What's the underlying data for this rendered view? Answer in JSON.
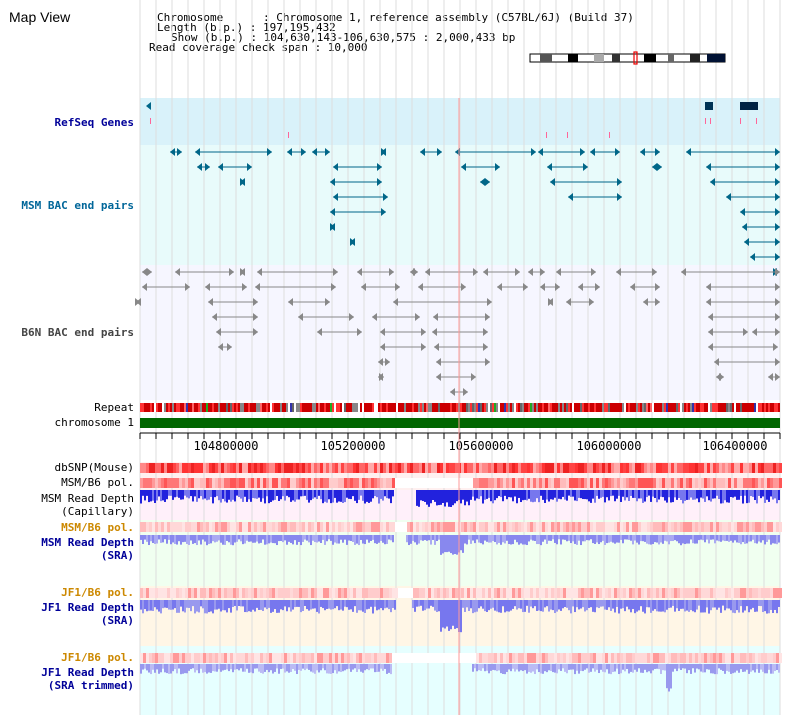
{
  "app": {
    "title": "Map View"
  },
  "header": {
    "chromosome_line": "Chromosome      : Chromosome 1, reference assembly (C57BL/6J) (Build 37)",
    "length_line": "Length (b.p.) : 197,195,432",
    "show_line": "Show (b.p.) : 104,630,143-106,630,575 : 2,000,433 bp",
    "span_line": "Read coverage check span : 10,000"
  },
  "tracks": {
    "refseq": "RefSeq Genes",
    "msm_bac": "MSM BAC end pairs",
    "b6n_bac": "B6N BAC end pairs",
    "repeat": "Repeat",
    "chromosome": "chromosome 1",
    "dbsnp": "dbSNP(Mouse)",
    "msm_pol_1": "MSM/B6 pol.",
    "msm_depth_cap_1": "MSM Read Depth",
    "msm_depth_cap_2": "(Capillary)",
    "msm_pol_2": "MSM/B6 pol.",
    "msm_depth_sra_1": "MSM Read Depth",
    "msm_depth_sra_2": "(SRA)",
    "jf1_pol_1": "JF1/B6 pol.",
    "jf1_depth_sra_1": "JF1 Read Depth",
    "jf1_depth_sra_2": "(SRA)",
    "jf1_pol_2": "JF1/B6 pol.",
    "jf1_depth_trim_1": "JF1 Read Depth",
    "jf1_depth_trim_2": "(SRA trimmed)"
  },
  "axis": {
    "ticks": [
      "104800000",
      "105200000",
      "105600000",
      "106000000",
      "106400000"
    ]
  },
  "colors": {
    "refseq_label": "#000099",
    "msm_bac_label": "#006699",
    "b6n_bac_label": "#444444",
    "pol_label_orange": "#cc8800",
    "depth_label_blue": "#000099",
    "chromosome_bar": "#006600",
    "teal_glyph": "#006688",
    "gray_glyph": "#888888"
  }
}
